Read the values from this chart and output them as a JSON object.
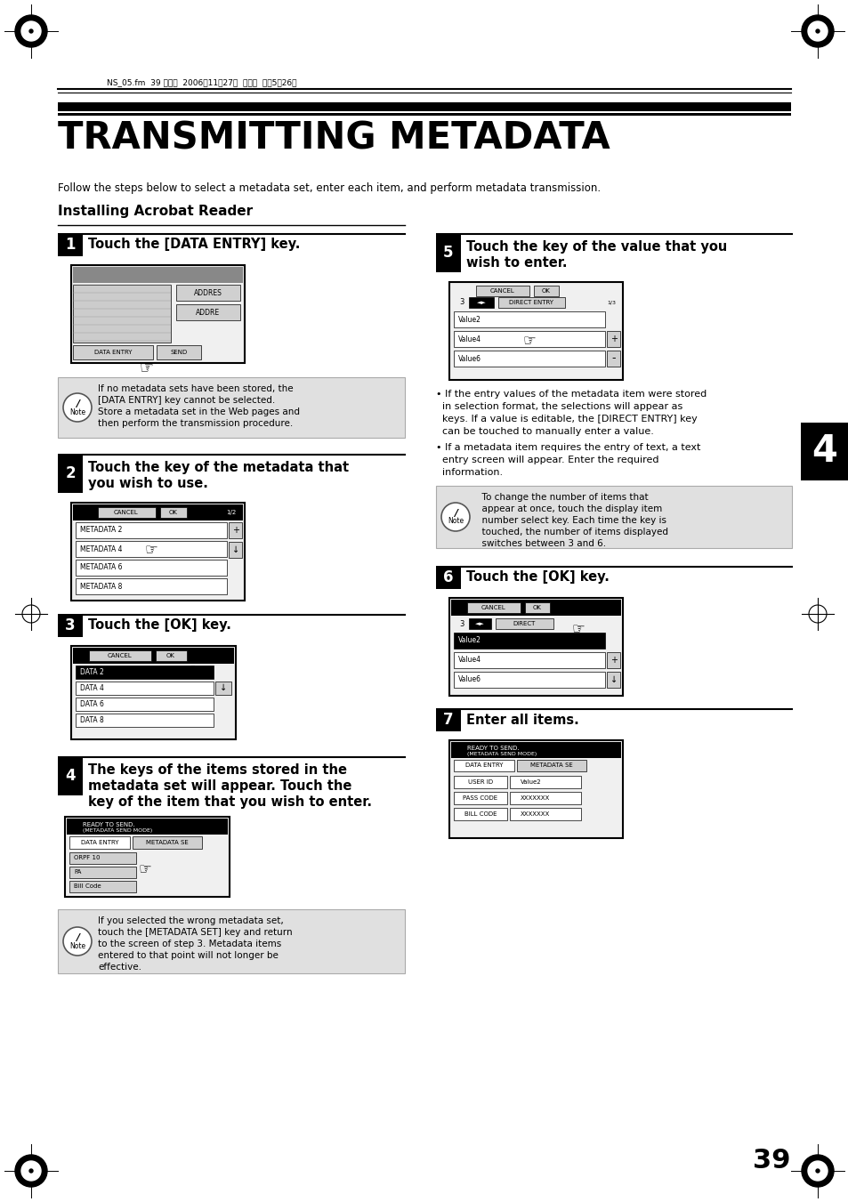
{
  "page_bg": "#ffffff",
  "header_text": "NS_05.fm  39 ページ  2006年11月27日  月曜日  午後5時26分",
  "title": "TRANSMITTING METADATA",
  "subtitle": "Follow the steps below to select a metadata set, enter each item, and perform metadata transmission.",
  "section_title": "Installing Acrobat Reader",
  "chapter_num": "4",
  "page_num": "39",
  "step1_text": "Touch the [DATA ENTRY] key.",
  "step2_line1": "Touch the key of the metadata that",
  "step2_line2": "you wish to use.",
  "step3_text": "Touch the [OK] key.",
  "step4_line1": "The keys of the items stored in the",
  "step4_line2": "metadata set will appear. Touch the",
  "step4_line3": "key of the item that you wish to enter.",
  "step5_line1": "Touch the key of the value that you",
  "step5_line2": "wish to enter.",
  "step6_text": "Touch the [OK] key.",
  "step7_text": "Enter all items.",
  "note1_line1": "If no metadata sets have been stored, the",
  "note1_line2": "[DATA ENTRY] key cannot be selected.",
  "note1_line3": "Store a metadata set in the Web pages and",
  "note1_line4": "then perform the transmission procedure.",
  "note2_line1": "  To change the number of items that",
  "note2_line2": "  appear at once, touch the display item",
  "note2_line3": "  number select key. Each time the key is",
  "note2_line4": "  touched, the number of items displayed",
  "note2_line5": "  switches between 3 and 6.",
  "note3_line1": "If you selected the wrong metadata set,",
  "note3_line2": "touch the [METADATA SET] key and return",
  "note3_line3": "to the screen of step 3. Metadata items",
  "note3_line4": "entered to that point will not longer be",
  "note3_line5": "effective.",
  "bullet1_line1": "• If the entry values of the metadata item were stored",
  "bullet1_line2": "  in selection format, the selections will appear as",
  "bullet1_line3": "  keys. If a value is editable, the [DIRECT ENTRY] key",
  "bullet1_line4": "  can be touched to manually enter a value.",
  "bullet2_line1": "• If a metadata item requires the entry of text, a text",
  "bullet2_line2": "  entry screen will appear. Enter the required",
  "bullet2_line3": "  information."
}
